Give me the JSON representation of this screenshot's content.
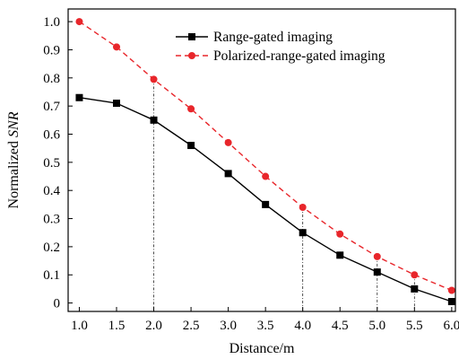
{
  "chart_data": {
    "type": "line",
    "xlabel": "Distance/m",
    "ylabel_prefix": "Normalized ",
    "ylabel_italic": "SNR",
    "x": [
      1.0,
      1.5,
      2.0,
      2.5,
      3.0,
      3.5,
      4.0,
      4.5,
      5.0,
      5.5,
      6.0
    ],
    "xlim": [
      0.85,
      6.05
    ],
    "ylim": [
      -0.03,
      1.045
    ],
    "x_ticks": [
      "1.0",
      "1.5",
      "2.0",
      "2.5",
      "3.0",
      "3.5",
      "4.0",
      "4.5",
      "5.0",
      "5.5",
      "6.0"
    ],
    "y_ticks": [
      "0",
      "0.1",
      "0.2",
      "0.3",
      "0.4",
      "0.5",
      "0.6",
      "0.7",
      "0.8",
      "0.9",
      "1.0"
    ],
    "y_tick_values": [
      0,
      0.1,
      0.2,
      0.3,
      0.4,
      0.5,
      0.6,
      0.7,
      0.8,
      0.9,
      1.0
    ],
    "grid": false,
    "legend_position": "top-right",
    "reference_lines_x": [
      2.0,
      4.0,
      5.0,
      5.5
    ],
    "series": [
      {
        "name": "Range-gated imaging",
        "color": "#000000",
        "marker": "square",
        "line_style": "solid",
        "values": [
          0.73,
          0.71,
          0.65,
          0.56,
          0.46,
          0.35,
          0.25,
          0.17,
          0.11,
          0.05,
          0.005
        ]
      },
      {
        "name": "Polarized-range-gated imaging",
        "color": "#e8262b",
        "marker": "circle",
        "line_style": "dashed",
        "values": [
          1.0,
          0.91,
          0.795,
          0.69,
          0.57,
          0.45,
          0.34,
          0.245,
          0.165,
          0.1,
          0.045
        ]
      }
    ]
  }
}
